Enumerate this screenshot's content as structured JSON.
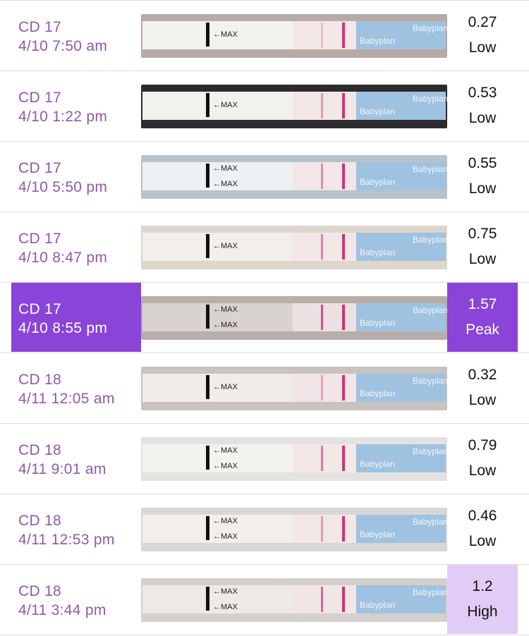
{
  "colors": {
    "label_text": "#8e5aa8",
    "peak_bg": "#8a44d8",
    "high_bg": "#e2ccf6",
    "divider": "#dddddd"
  },
  "strip_marker_text": "←MAX",
  "strip_brand_text": "Babyplan",
  "tests": [
    {
      "cycle_day": "CD 17",
      "datetime": "4/10 7:50 am",
      "value": "0.27",
      "result": "Low"
    },
    {
      "cycle_day": "CD 17",
      "datetime": "4/10 1:22 pm",
      "value": "0.53",
      "result": "Low"
    },
    {
      "cycle_day": "CD 17",
      "datetime": "4/10 5:50 pm",
      "value": "0.55",
      "result": "Low"
    },
    {
      "cycle_day": "CD 17",
      "datetime": "4/10 8:47 pm",
      "value": "0.75",
      "result": "Low"
    },
    {
      "cycle_day": "CD 17",
      "datetime": "4/10 8:55 pm",
      "value": "1.57",
      "result": "Peak"
    },
    {
      "cycle_day": "CD 18",
      "datetime": "4/11 12:05 am",
      "value": "0.32",
      "result": "Low"
    },
    {
      "cycle_day": "CD 18",
      "datetime": "4/11 9:01 am",
      "value": "0.79",
      "result": "Low"
    },
    {
      "cycle_day": "CD 18",
      "datetime": "4/11 12:53 pm",
      "value": "0.46",
      "result": "Low"
    },
    {
      "cycle_day": "CD 18",
      "datetime": "4/11 3:44 pm",
      "value": "1.2",
      "result": "High"
    }
  ]
}
